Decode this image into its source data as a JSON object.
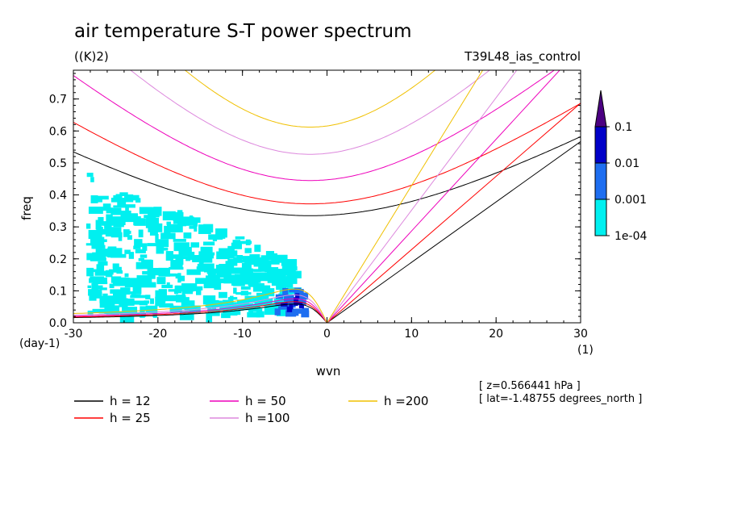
{
  "chart_data": {
    "type": "line",
    "title": "air temperature S-T power spectrum",
    "units": "((K)2)",
    "experiment": "T39L48_ias_control",
    "xlabel": "wvn",
    "ylabel": "freq",
    "x_unit": "(1)",
    "y_unit": "(day-1)",
    "xlim": [
      -30,
      30
    ],
    "ylim": [
      0,
      0.79
    ],
    "x_ticks": [
      -30,
      -20,
      -10,
      0,
      10,
      20,
      30
    ],
    "x_tick_labels": [
      "-30",
      "-20",
      "-10",
      "0",
      "10",
      "20",
      "30"
    ],
    "y_ticks": [
      0,
      0.1,
      0.2,
      0.3,
      0.4,
      0.5,
      0.6,
      0.7
    ],
    "y_tick_labels": [
      "0.0",
      "0.1",
      "0.2",
      "0.3",
      "0.4",
      "0.5",
      "0.6",
      "0.7"
    ],
    "grid": false,
    "series": [
      {
        "name": "h = 12",
        "color": "#000000",
        "kelvin_slope": 0.0189,
        "inertia_gravity_min": 0.335,
        "rossby_peak": 0.058
      },
      {
        "name": "h = 25",
        "color": "#ff0000",
        "kelvin_slope": 0.0229,
        "inertia_gravity_min": 0.372,
        "rossby_peak": 0.065
      },
      {
        "name": "h = 50",
        "color": "#ee00bb",
        "kelvin_slope": 0.0287,
        "inertia_gravity_min": 0.445,
        "rossby_peak": 0.074
      },
      {
        "name": "h =100",
        "color": "#dd88dd",
        "kelvin_slope": 0.0352,
        "inertia_gravity_min": 0.527,
        "rossby_peak": 0.086
      },
      {
        "name": "h =200",
        "color": "#f0c000",
        "kelvin_slope": 0.0429,
        "inertia_gravity_min": 0.612,
        "rossby_peak": 0.104
      }
    ],
    "shading": {
      "levels": [
        "0.1",
        "0.01",
        "0.001",
        "1e-04"
      ],
      "colors": [
        "#4b0082",
        "#0000c8",
        "#1e6ef0",
        "#00f0f0"
      ],
      "regions": [
        {
          "level": "1e-04",
          "x": [
            -28.5,
            -5.0
          ],
          "y": [
            0.03,
            0.48
          ]
        },
        {
          "level": "0.001",
          "x": [
            -6.5,
            -2.5
          ],
          "y": [
            0.03,
            0.12
          ]
        }
      ]
    },
    "legend_position": "bottom"
  },
  "notes": {
    "z": "[ z=0.566441 hPa ]",
    "lat": "[ lat=-1.48755 degrees_north ]"
  }
}
